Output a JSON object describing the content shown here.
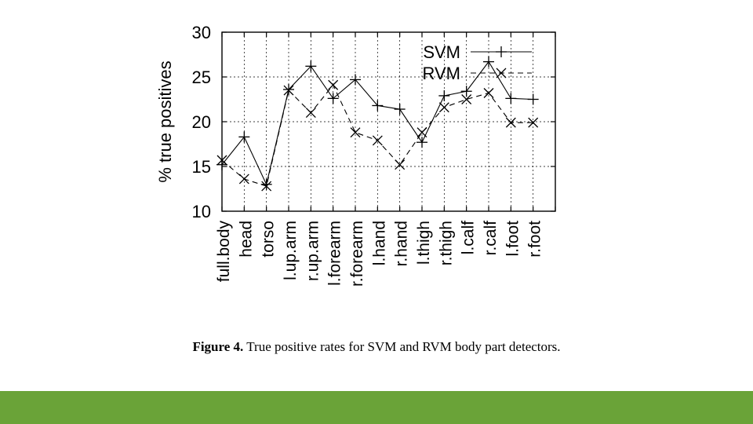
{
  "theme": {
    "bar_color": "#6aa338",
    "ink": "#000000"
  },
  "caption": {
    "label": "Figure 4.",
    "text": "True positive rates for SVM and RVM body part detectors."
  },
  "chart_data": {
    "type": "line",
    "ylabel": "% true positives",
    "ylim": [
      10,
      30
    ],
    "yticks": [
      10,
      15,
      20,
      25,
      30
    ],
    "grid": true,
    "legend_position": "top-right",
    "categories": [
      "full.body",
      "head",
      "torso",
      "l.up.arm",
      "r.up.arm",
      "l.forearm",
      "r.forearm",
      "l.hand",
      "r.hand",
      "l.thigh",
      "r.thigh",
      "l.calf",
      "r.calf",
      "l.foot",
      "r.foot"
    ],
    "series": [
      {
        "name": "SVM",
        "marker": "plus",
        "dash": "solid",
        "values": [
          15.2,
          18.3,
          13.0,
          23.6,
          26.2,
          22.6,
          24.7,
          21.8,
          21.4,
          17.7,
          22.9,
          23.4,
          26.7,
          22.6,
          22.5
        ]
      },
      {
        "name": "RVM",
        "marker": "cross",
        "dash": "dashed",
        "values": [
          15.7,
          13.6,
          12.8,
          23.5,
          21.0,
          24.1,
          18.8,
          17.9,
          15.2,
          18.8,
          21.6,
          22.5,
          23.2,
          19.9,
          19.9
        ]
      }
    ]
  }
}
